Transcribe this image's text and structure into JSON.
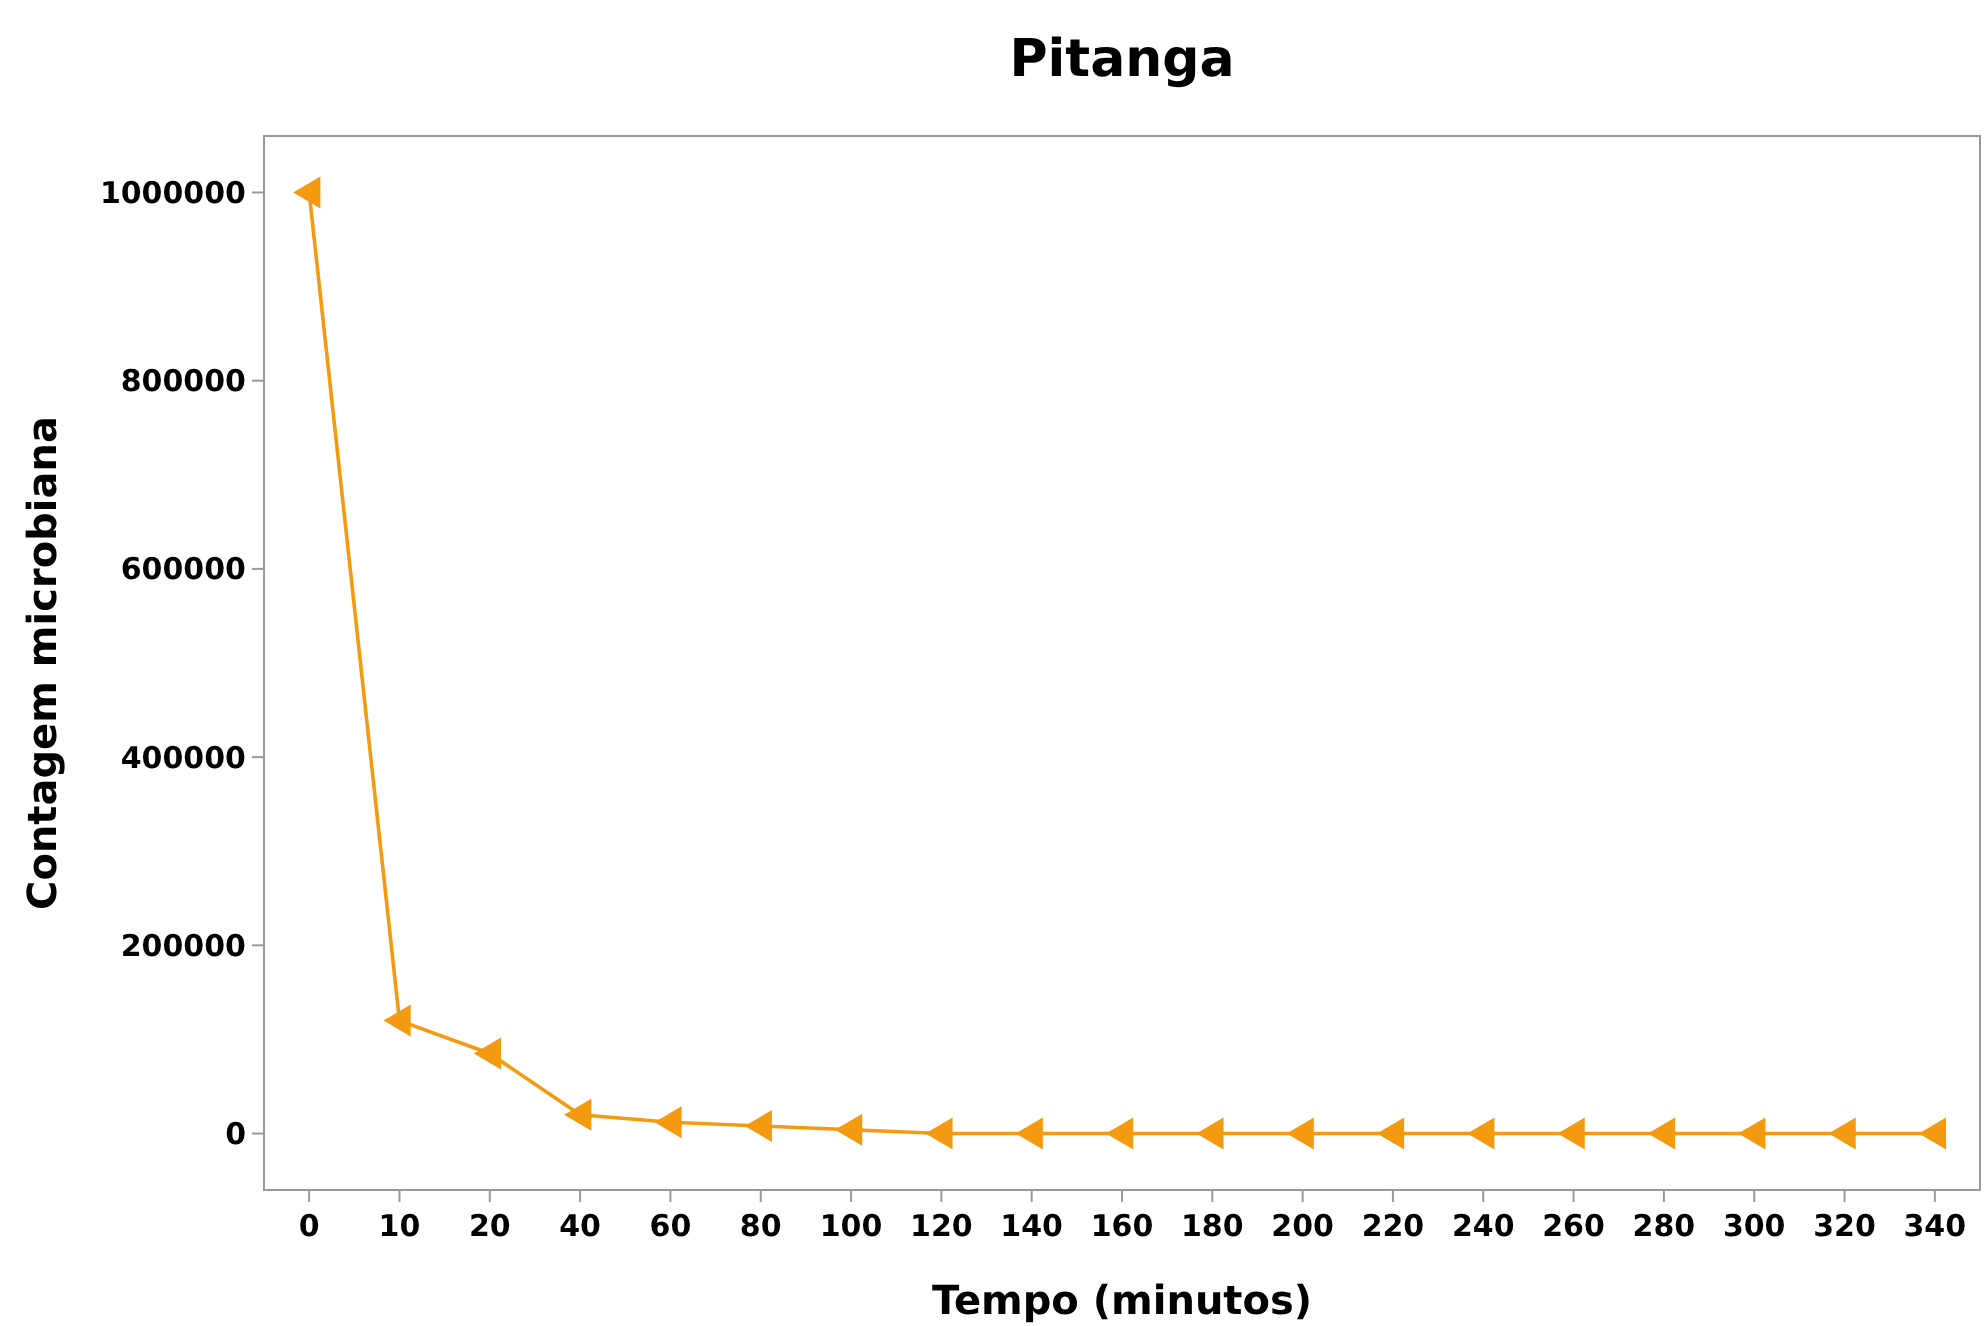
{
  "chart_data": {
    "type": "line",
    "title": "Pitanga",
    "xlabel": "Tempo (minutos)",
    "ylabel": "Contagem microbiana",
    "categories": [
      "0",
      "10",
      "20",
      "40",
      "60",
      "80",
      "100",
      "120",
      "140",
      "160",
      "180",
      "200",
      "220",
      "240",
      "260",
      "280",
      "300",
      "320",
      "340"
    ],
    "series": [
      {
        "color": "#f39a11",
        "values": [
          1000000,
          120000,
          85000,
          20000,
          12000,
          8000,
          4000,
          0,
          0,
          0,
          0,
          0,
          0,
          0,
          0,
          0,
          0,
          0,
          0
        ]
      }
    ],
    "ylim": [
      -60000,
      1060000
    ],
    "yticks": [
      0,
      200000,
      400000,
      600000,
      800000,
      1000000
    ],
    "grid": false,
    "marker": "triangle",
    "line_style": "solid"
  }
}
